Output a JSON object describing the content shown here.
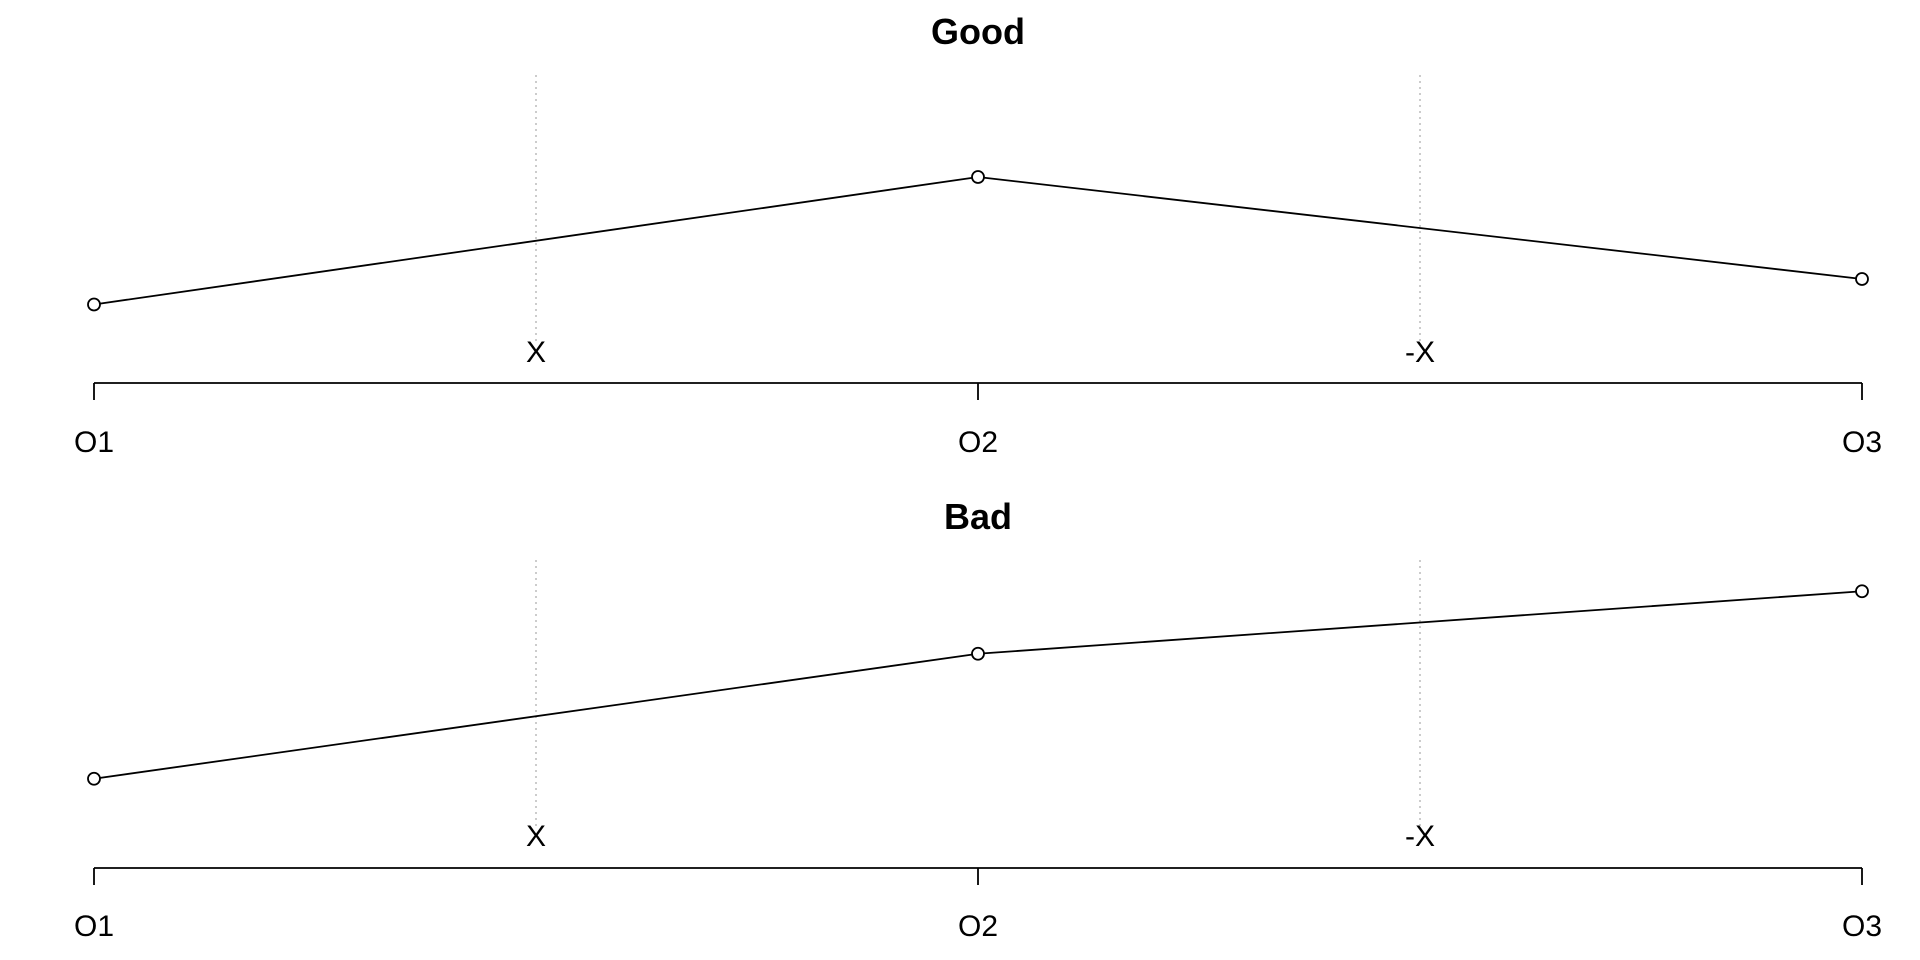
{
  "chart_data": [
    {
      "type": "line",
      "title": "Good",
      "categories": [
        "O1",
        "O2",
        "O3"
      ],
      "values": [
        1,
        6,
        2
      ],
      "ylim": [
        0,
        10
      ],
      "markers": "open-circle",
      "annotations": [
        "X",
        "-X"
      ],
      "grid": "dotted vertical lines at annotations",
      "line_color": "#000000",
      "grid_color": "#bbbbbb"
    },
    {
      "type": "line",
      "title": "Bad",
      "categories": [
        "O1",
        "O2",
        "O3"
      ],
      "values": [
        1,
        5,
        7
      ],
      "ylim": [
        0,
        8
      ],
      "markers": "open-circle",
      "annotations": [
        "X",
        "-X"
      ],
      "grid": "dotted vertical lines at annotations",
      "line_color": "#000000",
      "grid_color": "#bbbbbb"
    }
  ]
}
